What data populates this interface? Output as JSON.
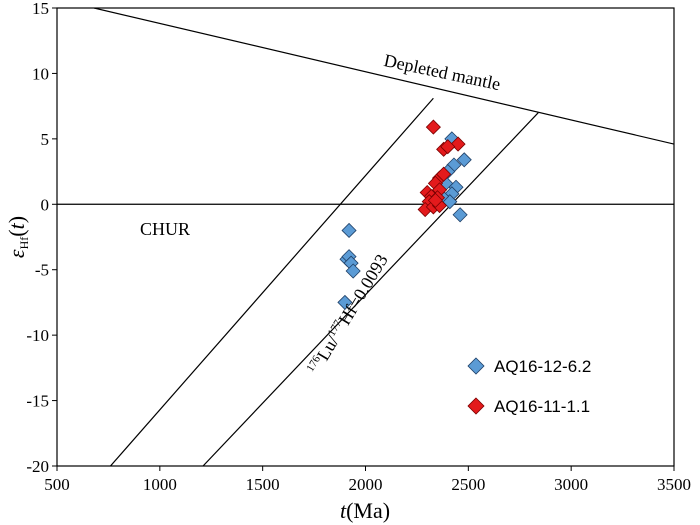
{
  "chart_data": {
    "type": "scatter",
    "xlabel": "t(Ma)",
    "ylabel": "εHf(t)",
    "xlim": [
      500,
      3500
    ],
    "ylim": [
      -20,
      15
    ],
    "x_ticks": [
      500,
      1000,
      1500,
      2000,
      2500,
      3000,
      3500
    ],
    "y_ticks": [
      -20,
      -15,
      -10,
      -5,
      0,
      5,
      10,
      15
    ],
    "grid": false,
    "legend_position": "bottom-right",
    "reference_lines": [
      {
        "label": "Depleted mantle",
        "points": [
          [
            680,
            15
          ],
          [
            3500,
            4.6
          ]
        ]
      },
      {
        "label": "CHUR",
        "points": [
          [
            500,
            0
          ],
          [
            3500,
            0
          ]
        ]
      },
      {
        "label": "",
        "points": [
          [
            760,
            -20
          ],
          [
            2330,
            8.1
          ]
        ]
      },
      {
        "label": "176Lu/177Hf=0.0093",
        "points": [
          [
            1210,
            -20
          ],
          [
            2840,
            7.0
          ]
        ]
      }
    ],
    "annotations": {
      "depleted_mantle": "Depleted mantle",
      "chur": "CHUR",
      "lu_hf_sup1": "176",
      "lu_hf_part1": "Lu/",
      "lu_hf_sup2": "177",
      "lu_hf_part2": "Hf=0.0093"
    },
    "series": [
      {
        "name": "AQ16-12-6.2",
        "color": "#5b9bd5",
        "marker": "diamond",
        "points": [
          [
            1920,
            -2.0
          ],
          [
            1910,
            -4.2
          ],
          [
            1920,
            -4.0
          ],
          [
            1930,
            -4.5
          ],
          [
            1940,
            -5.1
          ],
          [
            1900,
            -7.5
          ],
          [
            2420,
            5.0
          ],
          [
            2480,
            3.4
          ],
          [
            2430,
            3.0
          ],
          [
            2400,
            2.5
          ],
          [
            2440,
            1.3
          ],
          [
            2420,
            0.8
          ],
          [
            2410,
            0.2
          ],
          [
            2460,
            -0.8
          ],
          [
            2390,
            1.6
          ],
          [
            2370,
            0.6
          ]
        ]
      },
      {
        "name": "AQ16-11-1.1",
        "color": "#e31a1c",
        "marker": "diamond",
        "points": [
          [
            2330,
            5.9
          ],
          [
            2450,
            4.6
          ],
          [
            2380,
            4.2
          ],
          [
            2400,
            4.4
          ],
          [
            2360,
            2.0
          ],
          [
            2380,
            2.3
          ],
          [
            2340,
            1.6
          ],
          [
            2360,
            1.1
          ],
          [
            2300,
            0.9
          ],
          [
            2320,
            0.6
          ],
          [
            2350,
            0.5
          ],
          [
            2310,
            0.2
          ],
          [
            2290,
            -0.4
          ],
          [
            2330,
            -0.2
          ],
          [
            2360,
            -0.1
          ],
          [
            2340,
            0.3
          ]
        ]
      }
    ]
  }
}
